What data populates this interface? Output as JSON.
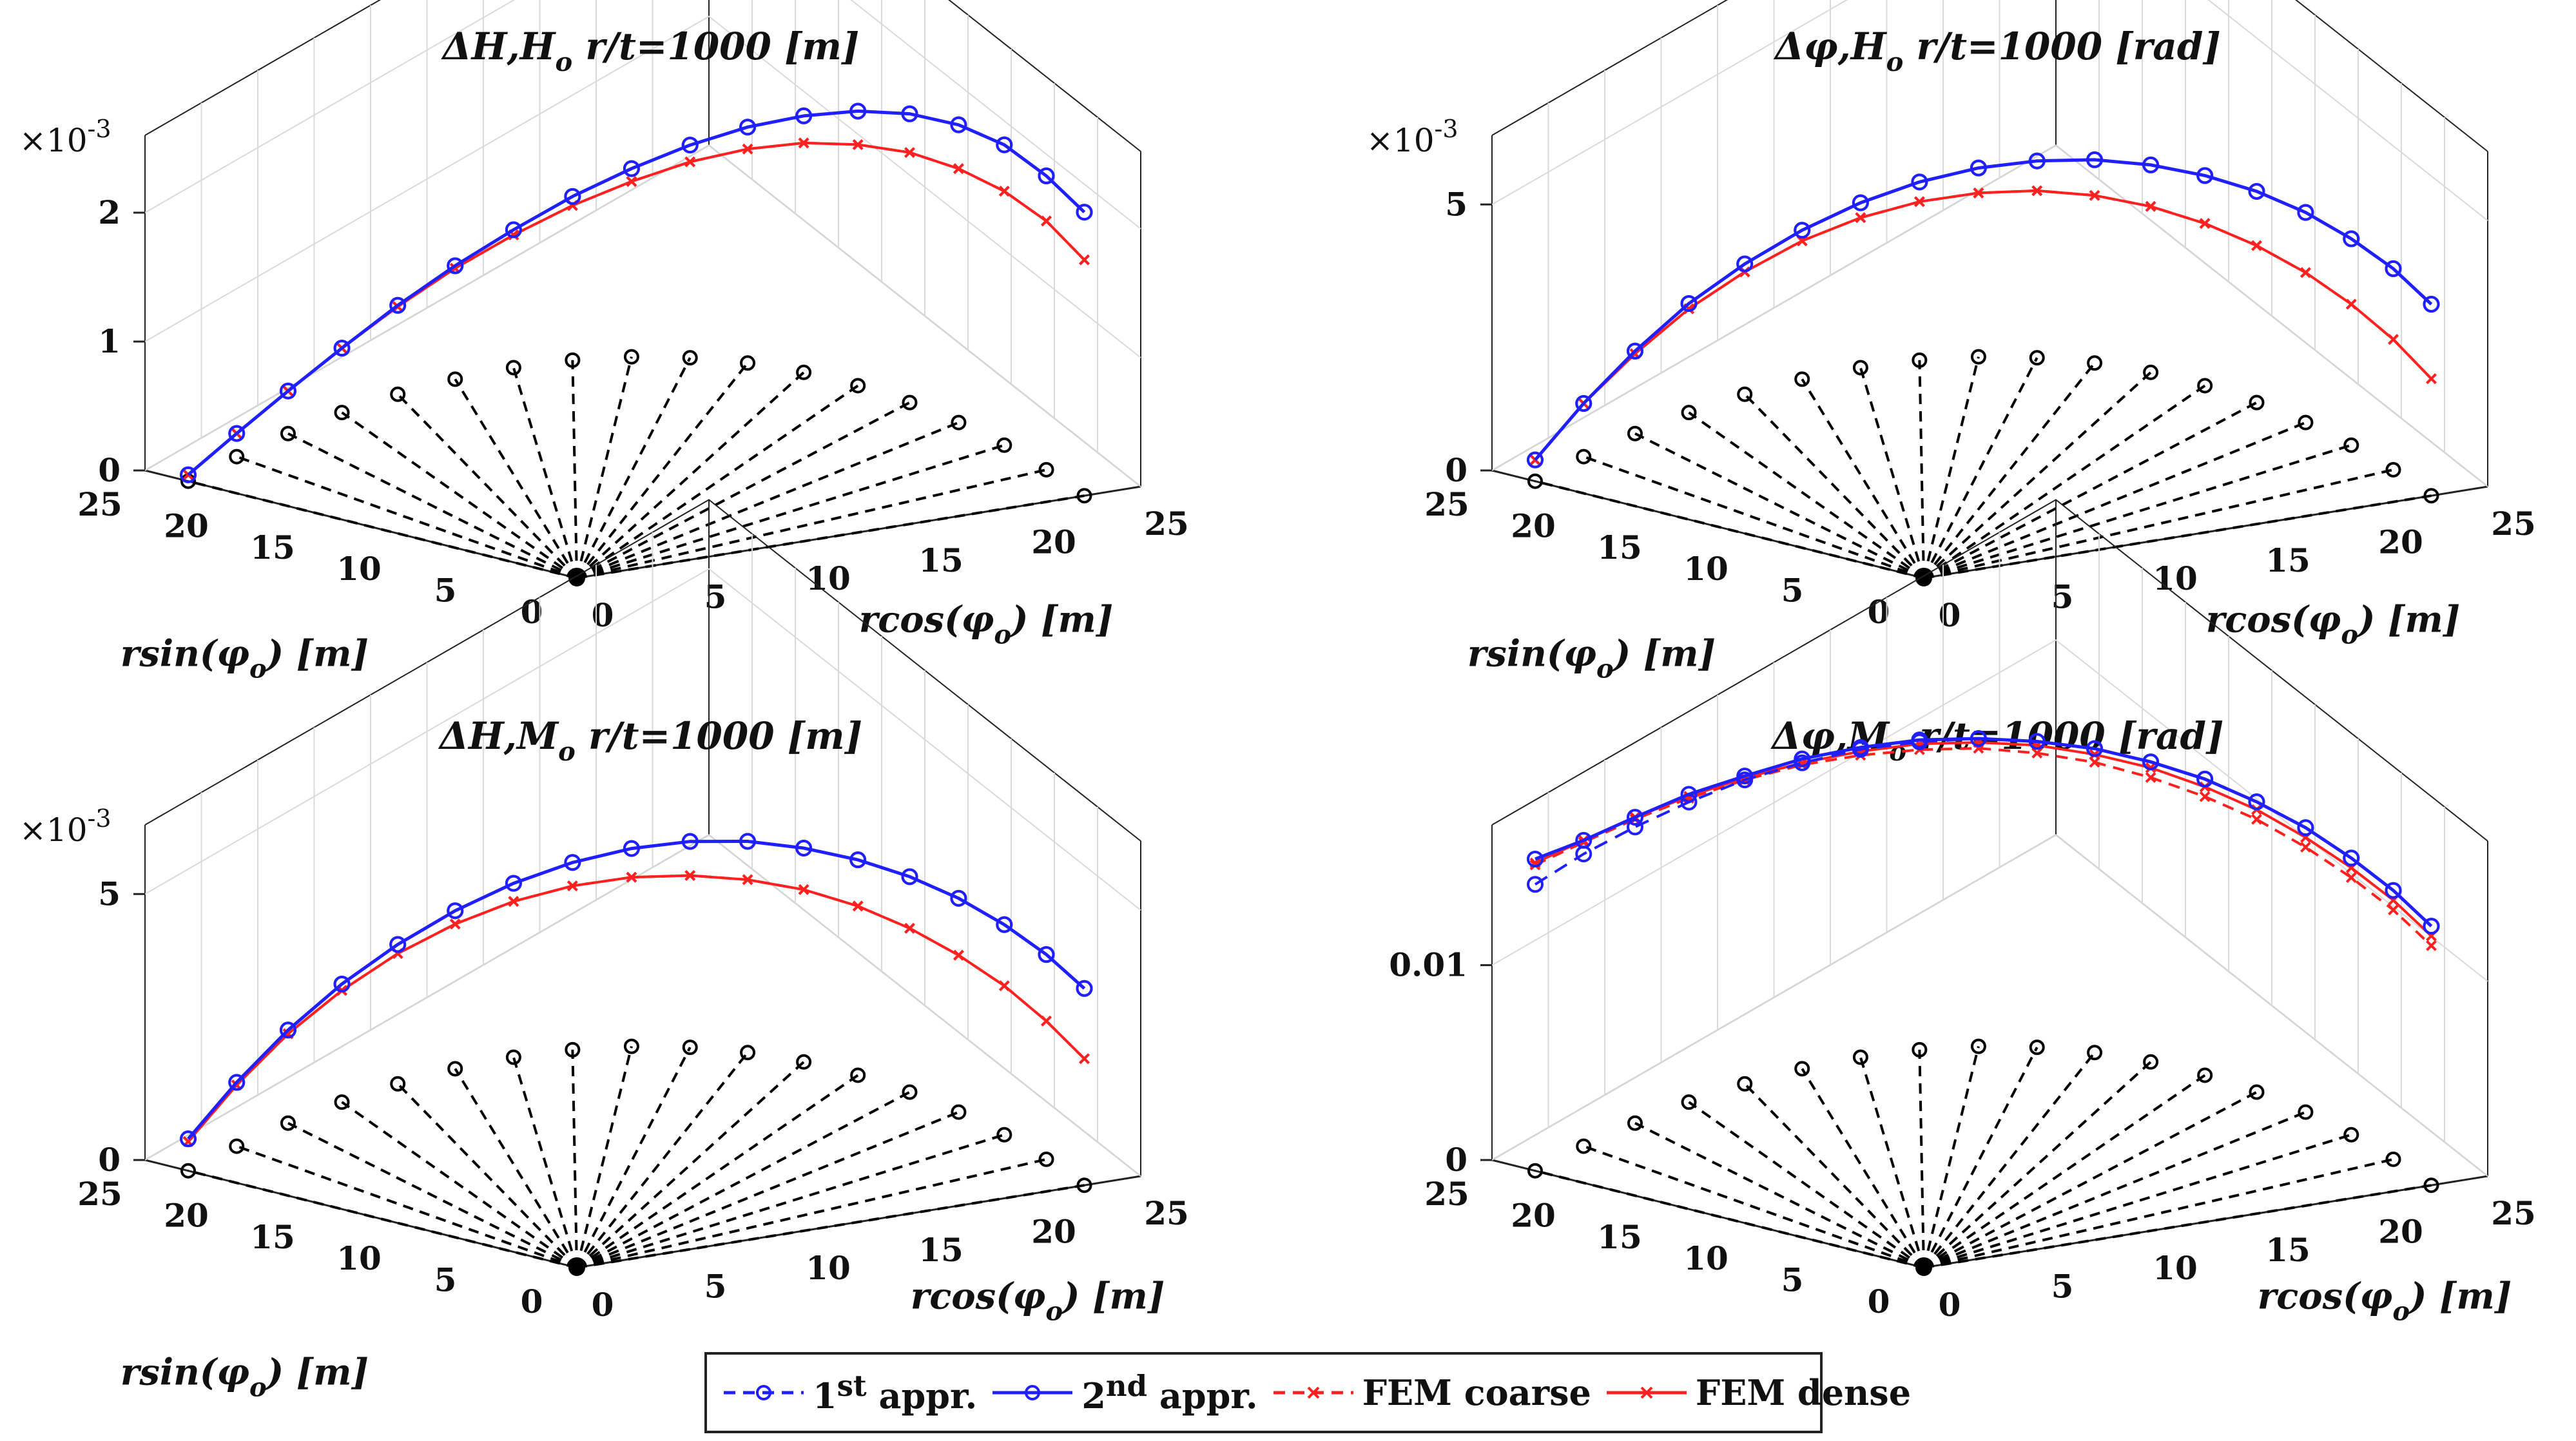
{
  "chart_data": [
    {
      "type": "line3d",
      "title_main": "ΔH,H",
      "title_sub": "o",
      "title_rest": " r/t=1000  [m]",
      "exponent_label": "×10",
      "exponent_sup": "-3",
      "zticks": [
        "0",
        "1",
        "2"
      ],
      "zvals": [
        0,
        1,
        2
      ],
      "zmax": 2.6,
      "x_label_main": "rcos(φ",
      "x_label_sub": "o",
      "x_label_rest": ") [m]",
      "y_label_main": "rsin(φ",
      "y_label_sub": "o",
      "y_label_rest": ") [m]",
      "xticks": [
        "0",
        "5",
        "10",
        "15",
        "20",
        "25"
      ],
      "yticks": [
        "0",
        "5",
        "10",
        "15",
        "20",
        "25"
      ],
      "series": [
        {
          "name": "1st appr.",
          "values": [
            0.05,
            0.18,
            0.33,
            0.5,
            0.69,
            0.88,
            1.07,
            1.27,
            1.46,
            1.65,
            1.83,
            1.99,
            2.13,
            2.24,
            2.31,
            2.33,
            2.28,
            2.2
          ]
        },
        {
          "name": "2nd appr.",
          "values": [
            0.05,
            0.18,
            0.33,
            0.5,
            0.69,
            0.88,
            1.07,
            1.27,
            1.46,
            1.65,
            1.83,
            1.99,
            2.13,
            2.24,
            2.31,
            2.33,
            2.28,
            2.2
          ]
        },
        {
          "name": "FEM coarse",
          "values": [
            0.05,
            0.18,
            0.33,
            0.5,
            0.68,
            0.86,
            1.03,
            1.2,
            1.36,
            1.52,
            1.66,
            1.78,
            1.87,
            1.94,
            1.97,
            1.97,
            1.93,
            1.83
          ]
        },
        {
          "name": "FEM dense",
          "values": [
            0.05,
            0.18,
            0.33,
            0.5,
            0.68,
            0.86,
            1.03,
            1.2,
            1.36,
            1.52,
            1.66,
            1.78,
            1.87,
            1.94,
            1.97,
            1.97,
            1.93,
            1.83
          ]
        }
      ]
    },
    {
      "type": "line3d",
      "title_main": "Δφ,H",
      "title_sub": "o",
      "title_rest": " r/t=1000  [rad]",
      "exponent_label": "×10",
      "exponent_sup": "-3",
      "zticks": [
        "0",
        "5"
      ],
      "zvals": [
        0,
        5
      ],
      "zmax": 6.3,
      "x_label_main": "rcos(φ",
      "x_label_sub": "o",
      "x_label_rest": ") [m]",
      "y_label_main": "rsin(φ",
      "y_label_sub": "o",
      "y_label_rest": ") [m]",
      "xticks": [
        "0",
        "5",
        "10",
        "15",
        "20",
        "25"
      ],
      "yticks": [
        "0",
        "5",
        "10",
        "15",
        "20",
        "25"
      ],
      "series": [
        {
          "name": "1st appr.",
          "values": [
            0.4,
            1.0,
            1.55,
            2.05,
            2.45,
            2.8,
            3.1,
            3.35,
            3.55,
            3.7,
            3.82,
            3.9,
            3.95,
            3.97,
            3.95,
            3.88,
            3.78,
            3.6
          ]
        },
        {
          "name": "2nd appr.",
          "values": [
            0.4,
            1.0,
            1.55,
            2.05,
            2.45,
            2.8,
            3.1,
            3.35,
            3.55,
            3.7,
            3.82,
            3.9,
            3.95,
            3.97,
            3.95,
            3.88,
            3.78,
            3.6
          ]
        },
        {
          "name": "FEM coarse",
          "values": [
            0.4,
            1.0,
            1.5,
            1.95,
            2.3,
            2.6,
            2.82,
            2.98,
            3.08,
            3.14,
            3.15,
            3.12,
            3.05,
            2.95,
            2.82,
            2.65,
            2.45,
            2.2
          ]
        },
        {
          "name": "FEM dense",
          "values": [
            0.4,
            1.0,
            1.5,
            1.95,
            2.3,
            2.6,
            2.82,
            2.98,
            3.08,
            3.14,
            3.15,
            3.12,
            3.05,
            2.95,
            2.82,
            2.65,
            2.45,
            2.2
          ]
        }
      ]
    },
    {
      "type": "line3d",
      "title_main": "ΔH,M",
      "title_sub": "o",
      "title_rest": " r/t=1000  [m]",
      "exponent_label": "×10",
      "exponent_sup": "-3",
      "zticks": [
        "0",
        "5"
      ],
      "zvals": [
        0,
        5
      ],
      "zmax": 6.3,
      "x_label_main": "rcos(φ",
      "x_label_sub": "o",
      "x_label_rest": ") [m]",
      "y_label_main": "rsin(φ",
      "y_label_sub": "o",
      "y_label_rest": ") [m]",
      "xticks": [
        "0",
        "5",
        "10",
        "15",
        "20",
        "25"
      ],
      "yticks": [
        "0",
        "5",
        "10",
        "15",
        "20",
        "25"
      ],
      "series": [
        {
          "name": "1st appr.",
          "values": [
            0.6,
            1.2,
            1.75,
            2.22,
            2.62,
            2.97,
            3.27,
            3.52,
            3.72,
            3.87,
            3.97,
            4.02,
            4.05,
            4.05,
            4.02,
            3.95,
            3.85,
            3.7
          ]
        },
        {
          "name": "2nd appr.",
          "values": [
            0.6,
            1.2,
            1.75,
            2.22,
            2.62,
            2.97,
            3.27,
            3.52,
            3.72,
            3.87,
            3.97,
            4.02,
            4.05,
            4.05,
            4.02,
            3.95,
            3.85,
            3.7
          ]
        },
        {
          "name": "FEM coarse",
          "values": [
            0.55,
            1.15,
            1.68,
            2.1,
            2.45,
            2.72,
            2.93,
            3.08,
            3.18,
            3.23,
            3.25,
            3.24,
            3.18,
            3.08,
            2.95,
            2.8,
            2.6,
            2.38
          ]
        },
        {
          "name": "FEM dense",
          "values": [
            0.55,
            1.15,
            1.68,
            2.1,
            2.45,
            2.72,
            2.93,
            3.08,
            3.18,
            3.23,
            3.25,
            3.24,
            3.18,
            3.08,
            2.95,
            2.8,
            2.6,
            2.38
          ]
        }
      ]
    },
    {
      "type": "line3d",
      "title_main": "Δφ,M",
      "title_sub": "o",
      "title_rest": " r/t=1000  [rad]",
      "exponent_label": "",
      "exponent_sup": "",
      "zticks": [
        "0",
        "0.01"
      ],
      "zvals": [
        0,
        0.01
      ],
      "zmax": 0.0172,
      "x_label_main": "rcos(φ",
      "x_label_sub": "o",
      "x_label_rest": ") [m]",
      "y_label_main": "rsin(φ",
      "y_label_sub": "o",
      "y_label_rest": ") [m]",
      "xticks": [
        "0",
        "5",
        "10",
        "15",
        "20",
        "25"
      ],
      "yticks": [
        "0",
        "5",
        "10",
        "15",
        "20",
        "25"
      ],
      "series": [
        {
          "name": "1st appr.",
          "values": [
            0.0147,
            0.015,
            0.0152,
            0.0154,
            0.0156,
            0.0157,
            0.0158,
            0.0158,
            0.0158,
            0.0157,
            0.0156,
            0.0154,
            0.0152,
            0.0149,
            0.0146,
            0.0142,
            0.0138,
            0.0133
          ]
        },
        {
          "name": "2nd appr.",
          "values": [
            0.016,
            0.0157,
            0.0157,
            0.0158,
            0.0158,
            0.0159,
            0.0159,
            0.0159,
            0.0158,
            0.0157,
            0.0156,
            0.0154,
            0.0152,
            0.0149,
            0.0146,
            0.0142,
            0.0138,
            0.0133
          ]
        },
        {
          "name": "FEM coarse",
          "values": [
            0.0157,
            0.0156,
            0.0156,
            0.0156,
            0.0156,
            0.0156,
            0.0155,
            0.0154,
            0.0153,
            0.0151,
            0.0149,
            0.0146,
            0.0143,
            0.014,
            0.0136,
            0.0132,
            0.0128,
            0.0123
          ]
        },
        {
          "name": "FEM dense",
          "values": [
            0.0158,
            0.0157,
            0.0157,
            0.0157,
            0.0157,
            0.0157,
            0.0157,
            0.0157,
            0.0156,
            0.0155,
            0.0153,
            0.0151,
            0.0148,
            0.0145,
            0.0141,
            0.0137,
            0.0133,
            0.0128
          ]
        }
      ]
    }
  ],
  "legend": {
    "items": [
      {
        "base": "1",
        "sup": "st",
        "rest": " appr.",
        "color": "#1f1fff",
        "dash": true,
        "marker": "circle"
      },
      {
        "base": "2",
        "sup": "nd",
        "rest": " appr.",
        "color": "#1f1fff",
        "dash": false,
        "marker": "circle"
      },
      {
        "base": "FEM coarse",
        "sup": "",
        "rest": "",
        "color": "#ff2020",
        "dash": true,
        "marker": "cross"
      },
      {
        "base": "FEM dense",
        "sup": "",
        "rest": "",
        "color": "#ff2020",
        "dash": false,
        "marker": "cross"
      }
    ]
  },
  "colors": {
    "approx": "#1f1fff",
    "fem": "#ff2020",
    "axis": "#222222",
    "grid": "#d9d9d9",
    "base": "#000000"
  }
}
